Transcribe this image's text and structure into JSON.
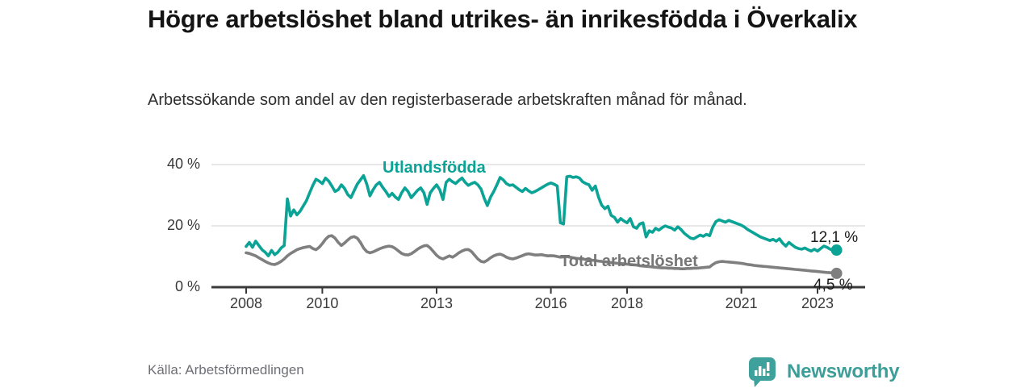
{
  "header": {
    "title": "Högre arbetslöshet bland utrikes- än inrikesfödda i Överkalix",
    "subtitle": "Arbetssökande som andel av den registerbaserade arbetskraften månad för månad."
  },
  "footer": {
    "source": "Källa: Arbetsförmedlingen",
    "brand_name": "Newsworthy"
  },
  "colors": {
    "foreign_born_line": "#0aa396",
    "total_line": "#7f7f7f",
    "total_label": "#757575",
    "axis": "#3a3a3a",
    "grid": "#d9d9d9",
    "brand_teal": "#3fa19b"
  },
  "chart_data": {
    "type": "line",
    "title": "Högre arbetslöshet bland utrikes- än inrikesfödda i Överkalix",
    "subtitle": "Arbetssökande som andel av den registerbaserade arbetskraften månad för månad.",
    "x_unit": "month",
    "x_start_year": 2008,
    "x_step_years": 0.0833333,
    "xlim": [
      2008,
      2023.6
    ],
    "ylim": [
      0,
      40
    ],
    "grid": "horizontal-only",
    "xticks": [
      2008,
      2010,
      2013,
      2016,
      2018,
      2021,
      2023
    ],
    "yticks": [
      {
        "value": 0,
        "label": "0 %"
      },
      {
        "value": 20,
        "label": "20 %"
      },
      {
        "value": 40,
        "label": "40 %"
      }
    ],
    "series": [
      {
        "name": "Utlandsfödda",
        "color": "#0aa396",
        "end_label": "12,1 %",
        "end_value": 12.1,
        "values": [
          13.3,
          14.6,
          13.0,
          15.0,
          13.6,
          12.2,
          11.4,
          10.2,
          12.0,
          10.6,
          11.4,
          12.8,
          13.6,
          28.8,
          23.2,
          25.2,
          23.6,
          24.8,
          26.5,
          28.2,
          30.8,
          33.2,
          35.2,
          34.6,
          33.8,
          35.6,
          34.6,
          33.0,
          31.2,
          31.8,
          33.4,
          32.2,
          30.2,
          29.2,
          31.4,
          33.6,
          35.0,
          36.4,
          33.6,
          29.8,
          31.8,
          33.4,
          34.2,
          32.6,
          31.2,
          29.6,
          30.6,
          29.4,
          28.6,
          30.8,
          32.4,
          31.2,
          29.2,
          30.4,
          31.6,
          32.4,
          30.8,
          27.0,
          30.8,
          32.2,
          33.4,
          31.8,
          28.6,
          34.2,
          35.2,
          34.4,
          33.8,
          34.8,
          35.6,
          34.2,
          33.2,
          33.8,
          34.2,
          33.4,
          32.0,
          29.0,
          26.6,
          29.4,
          31.2,
          33.4,
          35.8,
          35.0,
          33.8,
          33.2,
          33.4,
          32.6,
          31.8,
          31.2,
          32.2,
          31.4,
          30.8,
          31.2,
          31.8,
          32.4,
          33.0,
          33.6,
          34.0,
          33.6,
          33.0,
          21.0,
          20.6,
          36.0,
          36.2,
          35.8,
          36.0,
          35.6,
          34.4,
          33.8,
          33.4,
          31.6,
          33.0,
          29.4,
          26.8,
          25.6,
          26.4,
          23.4,
          22.8,
          21.2,
          22.4,
          21.6,
          21.0,
          22.4,
          19.7,
          19.2,
          20.6,
          21.0,
          16.4,
          18.4,
          17.9,
          19.2,
          18.6,
          19.4,
          20.0,
          19.6,
          19.3,
          18.6,
          19.7,
          18.8,
          17.6,
          16.8,
          16.0,
          15.8,
          16.4,
          17.0,
          16.6,
          17.2,
          16.8,
          19.6,
          21.4,
          22.0,
          21.6,
          21.2,
          21.8,
          21.4,
          21.0,
          20.6,
          20.2,
          19.6,
          18.8,
          18.2,
          17.6,
          17.0,
          16.4,
          16.0,
          15.6,
          15.2,
          15.6,
          15.0,
          15.8,
          14.4,
          13.4,
          14.6,
          13.8,
          13.0,
          12.6,
          12.4,
          12.8,
          12.2,
          11.8,
          12.4,
          11.8,
          12.6,
          13.4,
          13.0,
          12.4,
          11.9,
          12.1
        ]
      },
      {
        "name": "Total arbetslöshet",
        "color": "#7f7f7f",
        "end_label": "4,5 %",
        "end_value": 4.5,
        "values": [
          11.2,
          11.0,
          10.6,
          10.2,
          9.6,
          9.0,
          8.4,
          7.9,
          7.5,
          7.4,
          7.8,
          8.4,
          9.2,
          10.2,
          11.0,
          11.6,
          12.2,
          12.6,
          12.9,
          13.1,
          13.3,
          12.6,
          12.2,
          13.0,
          14.2,
          15.6,
          16.6,
          16.8,
          16.0,
          14.6,
          13.6,
          14.4,
          15.4,
          16.2,
          16.5,
          16.0,
          14.6,
          12.8,
          11.6,
          11.2,
          11.5,
          12.0,
          12.5,
          12.9,
          13.2,
          13.4,
          13.2,
          12.6,
          11.8,
          11.0,
          10.6,
          10.5,
          10.9,
          11.6,
          12.4,
          13.0,
          13.5,
          13.6,
          12.8,
          11.6,
          10.4,
          9.6,
          9.2,
          9.7,
          10.2,
          9.8,
          10.4,
          11.2,
          11.8,
          12.2,
          12.3,
          11.6,
          10.4,
          9.2,
          8.4,
          8.2,
          8.8,
          9.6,
          10.2,
          10.6,
          10.8,
          10.4,
          9.8,
          9.4,
          9.2,
          9.5,
          9.9,
          10.3,
          10.7,
          10.9,
          10.7,
          10.5,
          10.5,
          10.6,
          10.4,
          10.2,
          10.3,
          10.2,
          10.0,
          9.8,
          9.9,
          10.0,
          9.8,
          9.6,
          9.4,
          9.3,
          9.2,
          9.0,
          8.9,
          8.8,
          8.7,
          8.5,
          8.4,
          8.3,
          8.2,
          8.0,
          7.9,
          7.8,
          7.7,
          7.6,
          7.5,
          7.4,
          7.3,
          7.2,
          7.0,
          6.9,
          6.8,
          6.7,
          6.6,
          6.5,
          6.4,
          6.3,
          6.3,
          6.2,
          6.2,
          6.1,
          6.1,
          6.0,
          6.0,
          6.1,
          6.1,
          6.2,
          6.2,
          6.3,
          6.4,
          6.5,
          6.6,
          7.4,
          8.0,
          8.3,
          8.4,
          8.3,
          8.2,
          8.1,
          8.0,
          7.9,
          7.8,
          7.6,
          7.4,
          7.3,
          7.1,
          7.0,
          6.9,
          6.8,
          6.7,
          6.6,
          6.5,
          6.4,
          6.3,
          6.2,
          6.1,
          6.0,
          5.9,
          5.8,
          5.7,
          5.6,
          5.5,
          5.4,
          5.3,
          5.2,
          5.1,
          5.0,
          4.9,
          4.8,
          4.7,
          4.6,
          4.5
        ]
      }
    ]
  }
}
